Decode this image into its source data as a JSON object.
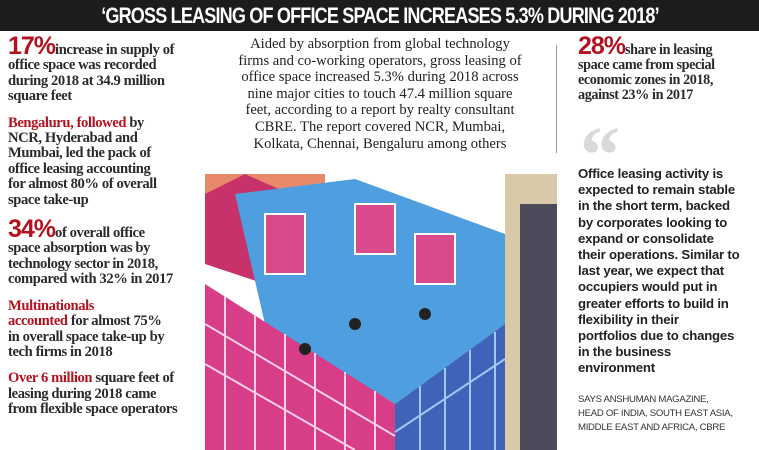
{
  "header": {
    "title": "‘GROSS LEASING OF OFFICE SPACE INCREASES 5.3% DURING 2018’"
  },
  "left_facts": [
    {
      "highlight": "17%",
      "text": "increase in supply of\noffice space was recorded\nduring 2018 at 34.9 million\nsquare feet"
    },
    {
      "highlight": "Bengaluru, followed",
      "text": " by\nNCR, Hyderabad and\nMumbai, led the pack of\noffice leasing accounting\nfor almost 80% of overall\nspace take-up"
    },
    {
      "highlight": "34%",
      "text": "of overall office\nspace absorption was by\ntechnology sector in 2018,\ncompared with 32% in 2017"
    },
    {
      "highlight": "Multinationals\naccounted",
      "text": " for almost 75%\nin overall space take-up by\ntech firms in 2018"
    },
    {
      "highlight": "Over 6 million",
      "text": " square feet of\nleasing during 2018 came\nfrom flexible space operators"
    }
  ],
  "center": {
    "text": "Aided by absorption from global technology\nfirms and co-working operators, gross leasing of\noffice space increased 5.3% during 2018 across\nnine major cities to touch 47.4 million square\nfeet, according to a report by realty consultant\nCBRE. The report covered NCR, Mumbai,\nKolkata, Chennai, Bengaluru among others"
  },
  "right_fact": {
    "highlight": "28%",
    "text": "share in leasing\nspace came from special\neconomic zones in 2018,\nagainst 23% in 2017"
  },
  "quote": {
    "mark": "“",
    "text": "Office leasing activity is\nexpected to remain stable\nin the short term, backed\nby corporates looking to\nexpand or consolidate\ntheir operations. Similar to\nlast year, we expect that\noccupiers would put in\ngreater efforts to build in\nflexibility in their\nportfolios due to changes\nin the business\nenvironment",
    "attribution": "SAYS ANSHUMAN MAGAZINE,\nHEAD OF INDIA, SOUTH EAST ASIA,\nMIDDLE EAST AND AFRICA, CBRE"
  },
  "colors": {
    "accent": "#b3121f",
    "header_bg": "#1c1c1c"
  }
}
